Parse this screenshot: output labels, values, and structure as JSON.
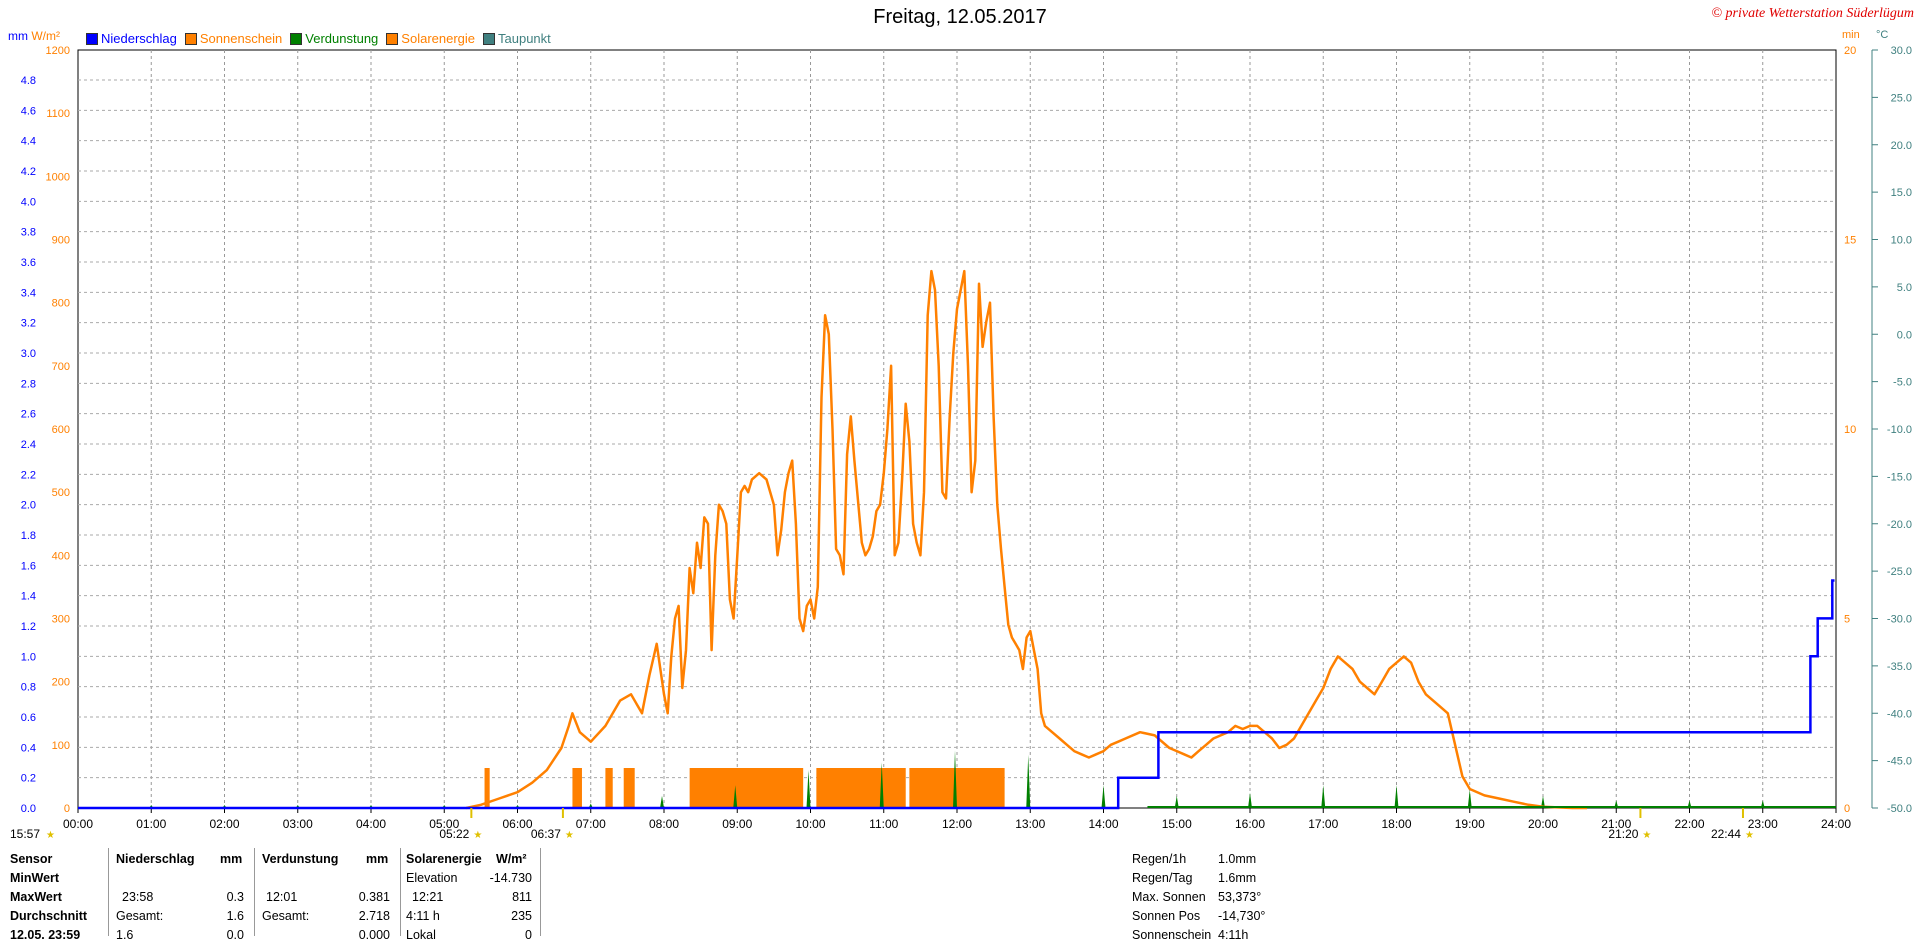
{
  "title": "Freitag, 12.05.2017",
  "copyright": "© private Wetterstation Süderlügum",
  "units_left": {
    "a": "mm",
    "b": "W/m²"
  },
  "units_right": {
    "a": "min",
    "b": "°C"
  },
  "legend": [
    {
      "label": "Niederschlag",
      "color": "#0000ff"
    },
    {
      "label": "Sonnenschein",
      "color": "#ff8000"
    },
    {
      "label": "Verdunstung",
      "color": "#008000"
    },
    {
      "label": "Solarenergie",
      "color": "#ff8000"
    },
    {
      "label": "Taupunkt",
      "color": "#408080"
    }
  ],
  "colors": {
    "rain": "#0000ff",
    "solar": "#ff8000",
    "evap": "#008000",
    "dew": "#408080",
    "grid": "#999999",
    "axis_solar": "#ff8000",
    "axis_rain": "#0000ff",
    "axis_temp": "#408080"
  },
  "chart_data": {
    "type": "line",
    "title": "Freitag, 12.05.2017",
    "x_ticks": [
      "00:00",
      "01:00",
      "02:00",
      "03:00",
      "04:00",
      "05:00",
      "06:00",
      "07:00",
      "08:00",
      "09:00",
      "10:00",
      "11:00",
      "12:00",
      "13:00",
      "14:00",
      "15:00",
      "16:00",
      "17:00",
      "18:00",
      "19:00",
      "20:00",
      "21:00",
      "22:00",
      "23:00",
      "24:00"
    ],
    "xlim_hours": [
      0,
      24
    ],
    "axes": {
      "rain_mm": {
        "ticks": [
          "0.0",
          "0.2",
          "0.4",
          "0.6",
          "0.8",
          "1.0",
          "1.2",
          "1.4",
          "1.6",
          "1.8",
          "2.0",
          "2.2",
          "2.4",
          "2.6",
          "2.8",
          "3.0",
          "3.2",
          "3.4",
          "3.6",
          "3.8",
          "4.0",
          "4.2",
          "4.4",
          "4.6",
          "4.8"
        ],
        "ylim": [
          0,
          4.8
        ]
      },
      "solar_wm2": {
        "ticks": [
          "0",
          "100",
          "200",
          "300",
          "400",
          "500",
          "600",
          "700",
          "800",
          "900",
          "1000",
          "1100",
          "1200"
        ],
        "ylim": [
          0,
          1200
        ]
      },
      "sunshine_min": {
        "ticks": [
          "0",
          "5",
          "10",
          "15",
          "20"
        ],
        "ylim": [
          0,
          20
        ]
      },
      "temp_c": {
        "ticks": [
          "-50.0",
          "-45.0",
          "-40.0",
          "-35.0",
          "-30.0",
          "-25.0",
          "-20.0",
          "-15.0",
          "-10.0",
          "-5.0",
          "0.0",
          "5.0",
          "10.0",
          "15.0",
          "20.0",
          "25.0",
          "30.0"
        ],
        "ylim": [
          -50,
          30
        ]
      }
    },
    "solarenergie_wm2": {
      "x_hours": [
        5.3,
        5.5,
        5.75,
        6.0,
        6.2,
        6.4,
        6.6,
        6.7,
        6.75,
        6.85,
        7.0,
        7.2,
        7.4,
        7.55,
        7.7,
        7.8,
        7.9,
        8.0,
        8.05,
        8.1,
        8.15,
        8.2,
        8.25,
        8.3,
        8.35,
        8.4,
        8.45,
        8.5,
        8.55,
        8.6,
        8.65,
        8.7,
        8.75,
        8.8,
        8.85,
        8.9,
        8.95,
        9.0,
        9.05,
        9.1,
        9.15,
        9.2,
        9.3,
        9.4,
        9.5,
        9.55,
        9.6,
        9.65,
        9.7,
        9.75,
        9.8,
        9.85,
        9.9,
        9.95,
        10.0,
        10.05,
        10.1,
        10.15,
        10.2,
        10.25,
        10.3,
        10.35,
        10.4,
        10.45,
        10.5,
        10.55,
        10.6,
        10.7,
        10.75,
        10.8,
        10.85,
        10.9,
        10.95,
        11.0,
        11.05,
        11.1,
        11.15,
        11.2,
        11.25,
        11.3,
        11.35,
        11.4,
        11.45,
        11.5,
        11.55,
        11.6,
        11.65,
        11.7,
        11.75,
        11.8,
        11.85,
        11.9,
        11.95,
        12.0,
        12.05,
        12.1,
        12.15,
        12.2,
        12.25,
        12.3,
        12.35,
        12.4,
        12.45,
        12.5,
        12.55,
        12.6,
        12.65,
        12.7,
        12.75,
        12.8,
        12.85,
        12.9,
        12.95,
        13.0,
        13.05,
        13.1,
        13.15,
        13.2,
        13.3,
        13.4,
        13.5,
        13.6,
        13.7,
        13.8,
        13.9,
        14.0,
        14.1,
        14.2,
        14.3,
        14.5,
        14.7,
        14.9,
        15.0,
        15.1,
        15.2,
        15.3,
        15.4,
        15.5,
        15.6,
        15.7,
        15.8,
        15.9,
        16.0,
        16.1,
        16.2,
        16.3,
        16.4,
        16.5,
        16.6,
        16.7,
        16.8,
        16.9,
        17.0,
        17.1,
        17.2,
        17.3,
        17.4,
        17.5,
        17.6,
        17.7,
        17.8,
        17.9,
        18.0,
        18.1,
        18.2,
        18.3,
        18.4,
        18.5,
        18.6,
        18.7,
        18.8,
        18.9,
        19.0,
        19.2,
        19.4,
        19.6,
        19.8,
        20.0,
        20.2,
        20.4,
        20.6
      ],
      "values": [
        0,
        5,
        15,
        25,
        40,
        60,
        95,
        130,
        150,
        120,
        105,
        130,
        170,
        180,
        150,
        210,
        260,
        180,
        150,
        240,
        300,
        320,
        190,
        250,
        380,
        340,
        420,
        380,
        460,
        450,
        250,
        400,
        480,
        470,
        450,
        330,
        300,
        400,
        500,
        510,
        500,
        520,
        530,
        520,
        480,
        400,
        440,
        500,
        530,
        550,
        450,
        300,
        280,
        320,
        330,
        300,
        350,
        650,
        780,
        750,
        600,
        410,
        400,
        370,
        560,
        620,
        550,
        420,
        400,
        410,
        430,
        470,
        480,
        530,
        600,
        700,
        400,
        420,
        520,
        640,
        580,
        450,
        420,
        400,
        500,
        780,
        850,
        820,
        700,
        500,
        490,
        620,
        720,
        790,
        820,
        850,
        700,
        500,
        550,
        830,
        730,
        770,
        800,
        620,
        480,
        410,
        350,
        290,
        270,
        260,
        250,
        220,
        270,
        280,
        250,
        220,
        150,
        130,
        120,
        110,
        100,
        90,
        85,
        80,
        85,
        90,
        100,
        105,
        110,
        120,
        115,
        95,
        90,
        85,
        80,
        90,
        100,
        110,
        115,
        120,
        130,
        125,
        130,
        130,
        120,
        110,
        95,
        100,
        110,
        130,
        150,
        170,
        190,
        220,
        240,
        230,
        220,
        200,
        190,
        180,
        200,
        220,
        230,
        240,
        230,
        200,
        180,
        170,
        160,
        150,
        100,
        50,
        30,
        20,
        15,
        10,
        5,
        2,
        1,
        0,
        0
      ],
      "color": "#ff8000"
    },
    "niederschlag_mm": {
      "x_hours": [
        0,
        14.2,
        14.2,
        14.75,
        14.75,
        23.65,
        23.65,
        23.75,
        23.75,
        23.85,
        23.85,
        23.95,
        23.95,
        23.98
      ],
      "values": [
        0,
        0,
        0.2,
        0.2,
        0.5,
        0.5,
        1.0,
        1.0,
        1.25,
        1.25,
        1.25,
        1.25,
        1.5,
        1.5
      ],
      "color": "#0000ff"
    },
    "sonnenschein_bars": {
      "color": "#ff8000",
      "bars": [
        {
          "start": 5.55,
          "end": 5.62,
          "min": 2
        },
        {
          "start": 6.75,
          "end": 6.88,
          "min": 1
        },
        {
          "start": 7.2,
          "end": 7.3,
          "min": 1
        },
        {
          "start": 7.45,
          "end": 7.6,
          "min": 1
        },
        {
          "start": 8.35,
          "end": 9.9,
          "min": 1
        },
        {
          "start": 10.08,
          "end": 11.3,
          "min": 1
        },
        {
          "start": 11.35,
          "end": 12.65,
          "min": 1
        }
      ]
    },
    "verdunstung_spikes": {
      "color": "#008000",
      "x_hours": [
        1.0,
        2.0,
        3.0,
        4.0,
        5.0,
        6.0,
        7.0,
        8.0,
        9.0,
        10.0,
        11.0,
        12.0,
        13.0,
        14.0,
        15.0,
        16.0,
        17.0,
        18.0,
        19.0,
        20.0,
        21.0,
        22.0,
        23.0
      ],
      "heights_mm": [
        0.02,
        0.02,
        0.02,
        0.02,
        0.02,
        0.02,
        0.03,
        0.08,
        0.15,
        0.25,
        0.3,
        0.38,
        0.35,
        0.15,
        0.08,
        0.1,
        0.15,
        0.15,
        0.12,
        0.08,
        0.05,
        0.05,
        0.05
      ]
    },
    "markers": [
      {
        "label": "15:57",
        "where": "left-bottom"
      },
      {
        "label": "05:22",
        "x_hours": 5.37
      },
      {
        "label": "06:37",
        "x_hours": 6.62
      },
      {
        "label": "21:20",
        "x_hours": 21.33
      },
      {
        "label": "22:44",
        "x_hours": 22.73
      }
    ]
  },
  "stats": {
    "sensor_label": "Sensor",
    "min_label": "MinWert",
    "max_label": "MaxWert",
    "avg_label": "Durchschnitt",
    "cut_label": "12.05. 23:59",
    "rain": {
      "header": "Niederschlag",
      "unit": "mm",
      "max_time": "23:58",
      "max_val": "0.3",
      "total_label": "Gesamt:",
      "total_val": "1.6",
      "cut_a": "1.6",
      "cut_b": "0.0"
    },
    "evap": {
      "header": "Verdunstung",
      "unit": "mm",
      "max_time": "12:01",
      "max_val": "0.381",
      "total_label": "Gesamt:",
      "total_val": "2.718",
      "cut_val": "0.000"
    },
    "solar": {
      "header": "Solarenergie",
      "unit": "W/m²",
      "elev_label": "Elevation",
      "elev_val": "-14.730",
      "max_time": "12:21",
      "max_val": "811",
      "dur_label": "4:11 h",
      "dur_val": "235",
      "cut_a": "Lokal",
      "cut_b": "0"
    },
    "right": [
      {
        "label": "Regen/1h",
        "value": "1.0mm"
      },
      {
        "label": "Regen/Tag",
        "value": "1.6mm"
      },
      {
        "label": "Max. Sonnen",
        "value": "53,373°"
      },
      {
        "label": "Sonnen Pos",
        "value": "-14,730°"
      },
      {
        "label": "Sonnenschein",
        "value": "4:11h"
      }
    ]
  }
}
